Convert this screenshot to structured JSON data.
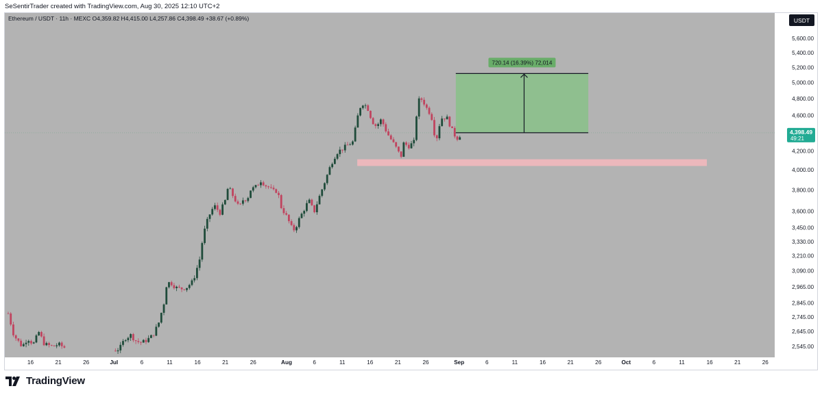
{
  "header": {
    "credit": "SeSentirTrader created with TradingView.com, Aug 30, 2025 12:10 UTC+2",
    "legend": "Ethereum / USDT · 11h · MEXC  O4,359.82  H4,415.00  L4,257.86  C4,398.49  +38.67 (+0.89%)"
  },
  "currency_badge": "USDT",
  "price_label": {
    "price": "4,398.49",
    "countdown": "49:21"
  },
  "position_tool": {
    "label": "720.14 (16.39%) 72,014",
    "entry": 4398.49,
    "target": 5118.63,
    "fill_color": "#8fbf8f",
    "label_color": "#69ad69"
  },
  "support_zone": {
    "low": 4040,
    "high": 4110,
    "color": "#f2b8bd"
  },
  "brand": {
    "name": "TradingView"
  },
  "colors": {
    "background": "#b3b3b3",
    "up_candle": "#1f4b3a",
    "down_candle": "#c0445f",
    "axis_text": "#131722"
  },
  "chart_data": {
    "type": "candlestick",
    "symbol": "Ethereum / USDT",
    "interval": "11h",
    "exchange": "MEXC",
    "y_scale": "log",
    "ylim": [
      2480,
      5800
    ],
    "y_ticks": [
      {
        "value": 2545,
        "label": "2,545.00"
      },
      {
        "value": 2645,
        "label": "2,645.00"
      },
      {
        "value": 2745,
        "label": "2,745.00"
      },
      {
        "value": 2845,
        "label": "2,845.00"
      },
      {
        "value": 2965,
        "label": "2,965.00"
      },
      {
        "value": 3090,
        "label": "3,090.00"
      },
      {
        "value": 3210,
        "label": "3,210.00"
      },
      {
        "value": 3330,
        "label": "3,330.00"
      },
      {
        "value": 3450,
        "label": "3,450.00"
      },
      {
        "value": 3600,
        "label": "3,600.00"
      },
      {
        "value": 3800,
        "label": "3,800.00"
      },
      {
        "value": 4000,
        "label": "4,000.00"
      },
      {
        "value": 4200,
        "label": "4,200.00"
      },
      {
        "value": 4600,
        "label": "4,600.00"
      },
      {
        "value": 4800,
        "label": "4,800.00"
      },
      {
        "value": 5000,
        "label": "5,000.00"
      },
      {
        "value": 5200,
        "label": "5,200.00"
      },
      {
        "value": 5400,
        "label": "5,400.00"
      },
      {
        "value": 5600,
        "label": "5,600.00"
      }
    ],
    "x_ticks": [
      {
        "day": 16,
        "label": "16",
        "bold": false
      },
      {
        "day": 21,
        "label": "21",
        "bold": false
      },
      {
        "day": 26,
        "label": "26",
        "bold": false
      },
      {
        "day": 31,
        "label": "Jul",
        "bold": true
      },
      {
        "day": 36,
        "label": "6",
        "bold": false
      },
      {
        "day": 41,
        "label": "11",
        "bold": false
      },
      {
        "day": 46,
        "label": "16",
        "bold": false
      },
      {
        "day": 51,
        "label": "21",
        "bold": false
      },
      {
        "day": 56,
        "label": "26",
        "bold": false
      },
      {
        "day": 62,
        "label": "Aug",
        "bold": true
      },
      {
        "day": 67,
        "label": "6",
        "bold": false
      },
      {
        "day": 72,
        "label": "11",
        "bold": false
      },
      {
        "day": 77,
        "label": "16",
        "bold": false
      },
      {
        "day": 82,
        "label": "21",
        "bold": false
      },
      {
        "day": 87,
        "label": "26",
        "bold": false
      },
      {
        "day": 93,
        "label": "Sep",
        "bold": true
      },
      {
        "day": 98,
        "label": "6",
        "bold": false
      },
      {
        "day": 103,
        "label": "11",
        "bold": false
      },
      {
        "day": 108,
        "label": "16",
        "bold": false
      },
      {
        "day": 113,
        "label": "21",
        "bold": false
      },
      {
        "day": 118,
        "label": "26",
        "bold": false
      },
      {
        "day": 123,
        "label": "Oct",
        "bold": true
      },
      {
        "day": 128,
        "label": "6",
        "bold": false
      },
      {
        "day": 133,
        "label": "11",
        "bold": false
      },
      {
        "day": 138,
        "label": "16",
        "bold": false
      },
      {
        "day": 143,
        "label": "21",
        "bold": false
      },
      {
        "day": 148,
        "label": "26",
        "bold": false
      }
    ],
    "path": [
      [
        12,
        2770
      ],
      [
        13,
        2620
      ],
      [
        14.5,
        2545
      ],
      [
        15.5,
        2600
      ],
      [
        16.5,
        2560
      ],
      [
        17.5,
        2640
      ],
      [
        18.5,
        2560
      ],
      [
        20,
        2545
      ],
      [
        21,
        2560
      ],
      [
        22,
        2540
      ],
      [
        25,
        2530
      ],
      [
        28,
        2510
      ],
      [
        29,
        2505
      ],
      [
        30,
        2510
      ],
      [
        32,
        2530
      ],
      [
        33,
        2600
      ],
      [
        34,
        2620
      ],
      [
        35,
        2580
      ],
      [
        36,
        2570
      ],
      [
        37,
        2590
      ],
      [
        38,
        2620
      ],
      [
        39,
        2700
      ],
      [
        40,
        2850
      ],
      [
        40.5,
        3000
      ],
      [
        41.5,
        2990
      ],
      [
        42,
        2960
      ],
      [
        43,
        2950
      ],
      [
        44,
        2960
      ],
      [
        45,
        3000
      ],
      [
        45.5,
        3050
      ],
      [
        46.5,
        3200
      ],
      [
        47,
        3380
      ],
      [
        48,
        3550
      ],
      [
        49,
        3650
      ],
      [
        49.5,
        3620
      ],
      [
        50,
        3580
      ],
      [
        51,
        3700
      ],
      [
        51.5,
        3830
      ],
      [
        52.5,
        3730
      ],
      [
        53,
        3680
      ],
      [
        53.5,
        3620
      ],
      [
        54,
        3700
      ],
      [
        55,
        3720
      ],
      [
        55.5,
        3800
      ],
      [
        56.5,
        3830
      ],
      [
        57.5,
        3900
      ],
      [
        58,
        3850
      ],
      [
        59,
        3820
      ],
      [
        59.5,
        3780
      ],
      [
        60,
        3800
      ],
      [
        60.5,
        3760
      ],
      [
        61,
        3640
      ],
      [
        62,
        3550
      ],
      [
        63,
        3440
      ],
      [
        63.5,
        3430
      ],
      [
        64,
        3500
      ],
      [
        65,
        3600
      ],
      [
        66,
        3700
      ],
      [
        66.5,
        3640
      ],
      [
        67,
        3600
      ],
      [
        68,
        3750
      ],
      [
        69,
        3900
      ],
      [
        70,
        4060
      ],
      [
        71,
        4180
      ],
      [
        72,
        4220
      ],
      [
        73,
        4260
      ],
      [
        74,
        4300
      ],
      [
        74.5,
        4500
      ],
      [
        75,
        4650
      ],
      [
        75.5,
        4750
      ],
      [
        76.5,
        4700
      ],
      [
        77,
        4600
      ],
      [
        77.5,
        4520
      ],
      [
        78,
        4480
      ],
      [
        78.5,
        4500
      ],
      [
        79,
        4550
      ],
      [
        79.5,
        4480
      ],
      [
        80,
        4400
      ],
      [
        81,
        4300
      ],
      [
        82,
        4200
      ],
      [
        82.5,
        4120
      ],
      [
        83,
        4280
      ],
      [
        84,
        4250
      ],
      [
        85,
        4300
      ],
      [
        85.5,
        4750
      ],
      [
        86,
        4800
      ],
      [
        86.5,
        4780
      ],
      [
        87,
        4700
      ],
      [
        88,
        4600
      ],
      [
        88.5,
        4400
      ],
      [
        89,
        4350
      ],
      [
        89.5,
        4500
      ],
      [
        90,
        4580
      ],
      [
        91,
        4560
      ],
      [
        91.5,
        4450
      ],
      [
        92,
        4400
      ],
      [
        92.5,
        4330
      ],
      [
        93,
        4360
      ],
      [
        93.5,
        4398
      ]
    ]
  }
}
